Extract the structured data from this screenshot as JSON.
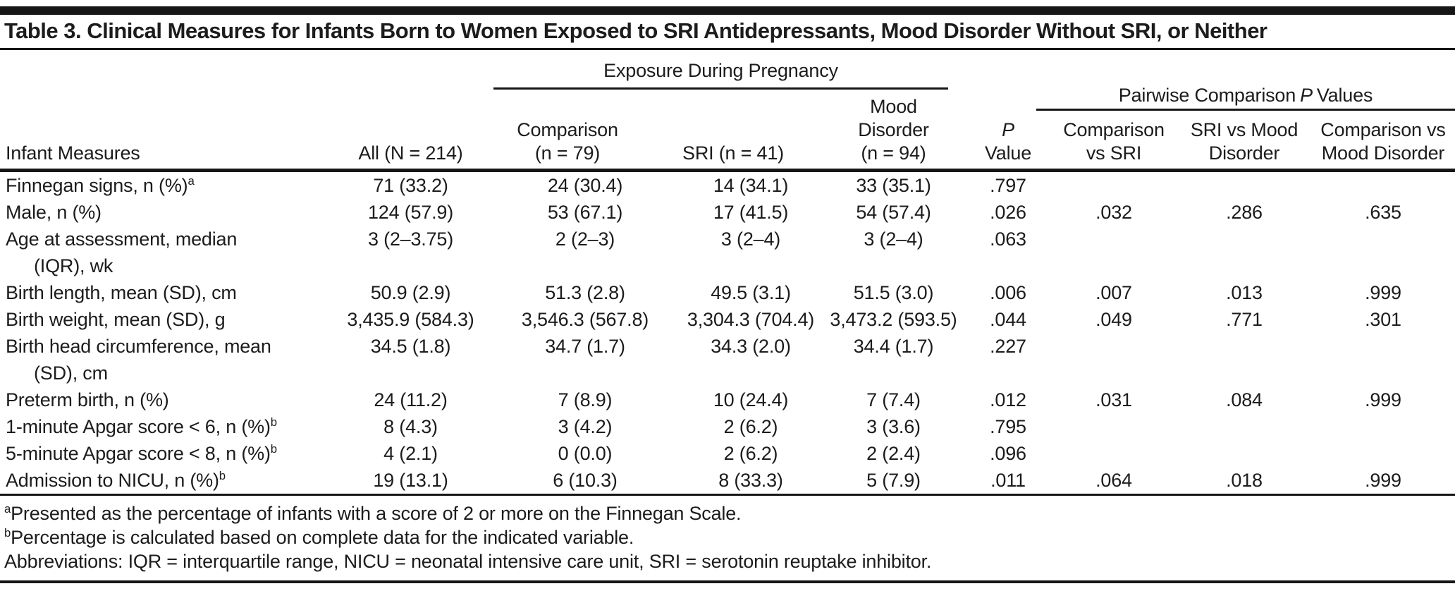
{
  "title": "Table 3. Clinical Measures for Infants Born to Women Exposed to SRI Antidepressants, Mood Disorder Without SRI, or Neither",
  "spanners": {
    "exposure": "Exposure During Pregnancy",
    "pairwise_pre": "Pairwise Comparison",
    "pairwise_italic": "P",
    "pairwise_post": "Values"
  },
  "columns": [
    {
      "id": "infant-measures",
      "lines": [
        "Infant Measures"
      ]
    },
    {
      "id": "all",
      "lines": [
        "All (N = 214)"
      ]
    },
    {
      "id": "comparison",
      "lines": [
        "Comparison",
        "(n = 79)"
      ]
    },
    {
      "id": "sri",
      "lines": [
        "SRI (n = 41)"
      ]
    },
    {
      "id": "mood-disorder",
      "lines": [
        "Mood",
        "Disorder",
        "(n = 94)"
      ]
    },
    {
      "id": "p-value",
      "lines": [
        "P",
        "Value"
      ],
      "italic_lines": [
        0
      ]
    },
    {
      "id": "comparison-vs-sri",
      "lines": [
        "Comparison",
        "vs SRI"
      ]
    },
    {
      "id": "sri-vs-mood-disorder",
      "lines": [
        "SRI vs Mood",
        "Disorder"
      ]
    },
    {
      "id": "comparison-vs-mood-disorder",
      "lines": [
        "Comparison vs",
        "Mood Disorder"
      ]
    }
  ],
  "rows": [
    {
      "label": "Finnegan signs, n (%)",
      "sup": "a",
      "values": [
        "71 (33.2)",
        "24 (30.4)",
        "14 (34.1)",
        "33 (35.1)",
        ".797",
        "",
        "",
        ""
      ]
    },
    {
      "label": "Male, n (%)",
      "values": [
        "124 (57.9)",
        "53 (67.1)",
        "17 (41.5)",
        "54 (57.4)",
        ".026",
        ".032",
        ".286",
        ".635"
      ]
    },
    {
      "label": "Age at assessment, median",
      "label2": "(IQR), wk",
      "values": [
        "3 (2–3.75)",
        "2 (2–3)",
        "3 (2–4)",
        "3 (2–4)",
        ".063",
        "",
        "",
        ""
      ]
    },
    {
      "label": "Birth length, mean (SD), cm",
      "values": [
        "50.9 (2.9)",
        "51.3 (2.8)",
        "49.5 (3.1)",
        "51.5 (3.0)",
        ".006",
        ".007",
        ".013",
        ".999"
      ]
    },
    {
      "label": "Birth weight, mean (SD), g",
      "values": [
        "3,435.9 (584.3)",
        "3,546.3 (567.8)",
        "3,304.3 (704.4)",
        "3,473.2 (593.5)",
        ".044",
        ".049",
        ".771",
        ".301"
      ]
    },
    {
      "label": "Birth head circumference, mean",
      "label2": "(SD), cm",
      "values": [
        "34.5 (1.8)",
        "34.7 (1.7)",
        "34.3 (2.0)",
        "34.4 (1.7)",
        ".227",
        "",
        "",
        ""
      ]
    },
    {
      "label": "Preterm birth, n (%)",
      "values": [
        "24 (11.2)",
        "7 (8.9)",
        "10 (24.4)",
        "7 (7.4)",
        ".012",
        ".031",
        ".084",
        ".999"
      ]
    },
    {
      "label": "1-minute Apgar score < 6, n (%)",
      "sup": "b",
      "values": [
        "8 (4.3)",
        "3 (4.2)",
        "2 (6.2)",
        "3 (3.6)",
        ".795",
        "",
        "",
        ""
      ]
    },
    {
      "label": "5-minute Apgar score < 8, n (%)",
      "sup": "b",
      "values": [
        "4 (2.1)",
        "0 (0.0)",
        "2 (6.2)",
        "2 (2.4)",
        ".096",
        "",
        "",
        ""
      ]
    },
    {
      "label": "Admission to NICU, n (%)",
      "sup": "b",
      "values": [
        "19 (13.1)",
        "6 (10.3)",
        "8 (33.3)",
        "5 (7.9)",
        ".011",
        ".064",
        ".018",
        ".999"
      ]
    }
  ],
  "footnotes": [
    {
      "sup": "a",
      "text": "Presented as the percentage of infants with a score of 2 or more on the Finnegan Scale."
    },
    {
      "sup": "b",
      "text": "Percentage is calculated based on complete data for the indicated variable."
    },
    {
      "sup": "",
      "text": "Abbreviations: IQR = interquartile range, NICU = neonatal intensive care unit, SRI = serotonin reuptake inhibitor."
    }
  ],
  "colors": {
    "text": "#1c1c1c",
    "rule": "#161616",
    "background": "#ffffff"
  }
}
